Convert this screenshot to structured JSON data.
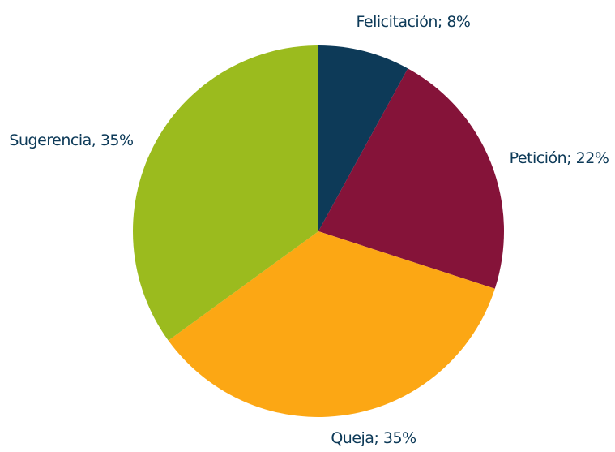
{
  "chart_data": {
    "type": "pie",
    "categories": [
      "Felicitación;",
      "Petición;",
      "Queja;",
      "Sugerencia,"
    ],
    "values": [
      8,
      22,
      35,
      35
    ],
    "value_labels": [
      "8%",
      "22%",
      "35%",
      "35%"
    ],
    "colors": [
      "#0d3a58",
      "#851339",
      "#fca714",
      "#9bbb1e"
    ]
  }
}
